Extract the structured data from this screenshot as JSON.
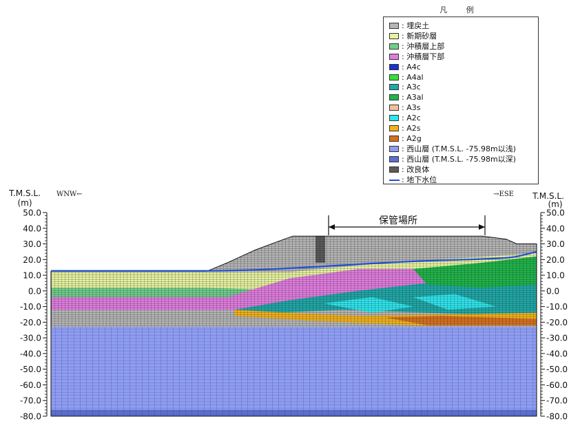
{
  "legend": {
    "title": "凡 例",
    "items": [
      {
        "label": ": 埋戻土",
        "color": "#b5b5b5",
        "kind": "box"
      },
      {
        "label": ": 新期砂層",
        "color": "#e7f3a0",
        "kind": "box"
      },
      {
        "label": ": 沖積層上部",
        "color": "#6fcf8b",
        "kind": "box"
      },
      {
        "label": ": 沖積層下部",
        "color": "#e07ddf",
        "kind": "box"
      },
      {
        "label": ": A4c",
        "color": "#1f2fd0",
        "kind": "box"
      },
      {
        "label": ": A4al",
        "color": "#36e03a",
        "kind": "box"
      },
      {
        "label": ": A3c",
        "color": "#20a8a8",
        "kind": "box"
      },
      {
        "label": ": A3al",
        "color": "#1fb54a",
        "kind": "box"
      },
      {
        "label": ": A3s",
        "color": "#f3c09a",
        "kind": "box"
      },
      {
        "label": ": A2c",
        "color": "#2ee6ee",
        "kind": "box"
      },
      {
        "label": ": A2s",
        "color": "#f2b21c",
        "kind": "box"
      },
      {
        "label": ": A2g",
        "color": "#d8701e",
        "kind": "box"
      },
      {
        "label": ": 西山層 (T.M.S.L. -75.98m以浅)",
        "color": "#8e9cf1",
        "kind": "box"
      },
      {
        "label": ": 西山層 (T.M.S.L. -75.98m以深)",
        "color": "#5b6fd0",
        "kind": "box"
      },
      {
        "label": ": 改良体",
        "color": "#5a5a5a",
        "kind": "box"
      },
      {
        "label": ": 地下水位",
        "color": "#1f4fd6",
        "kind": "line"
      }
    ]
  },
  "axis": {
    "left_title": "T.M.S.L.",
    "right_title": "T.M.S.L.",
    "unit": "(m)",
    "ticks": [
      50,
      40,
      30,
      20,
      10,
      0,
      -10,
      -20,
      -30,
      -40,
      -50,
      -60,
      -70,
      -80
    ],
    "tick_labels": [
      "50.0",
      "40.0",
      "30.0",
      "20.0",
      "10.0",
      "0.0",
      "-10.0",
      "-20.0",
      "-30.0",
      "-40.0",
      "-50.0",
      "-60.0",
      "-70.0",
      "-80.0"
    ],
    "range": [
      -80,
      50
    ]
  },
  "directions": {
    "left": "WNW←",
    "right": "→ESE"
  },
  "annotation": "保管場所",
  "colors": {
    "background": "#ffffff",
    "mesh": "#1a1a1a",
    "groundwater": "#1f4fd6"
  }
}
